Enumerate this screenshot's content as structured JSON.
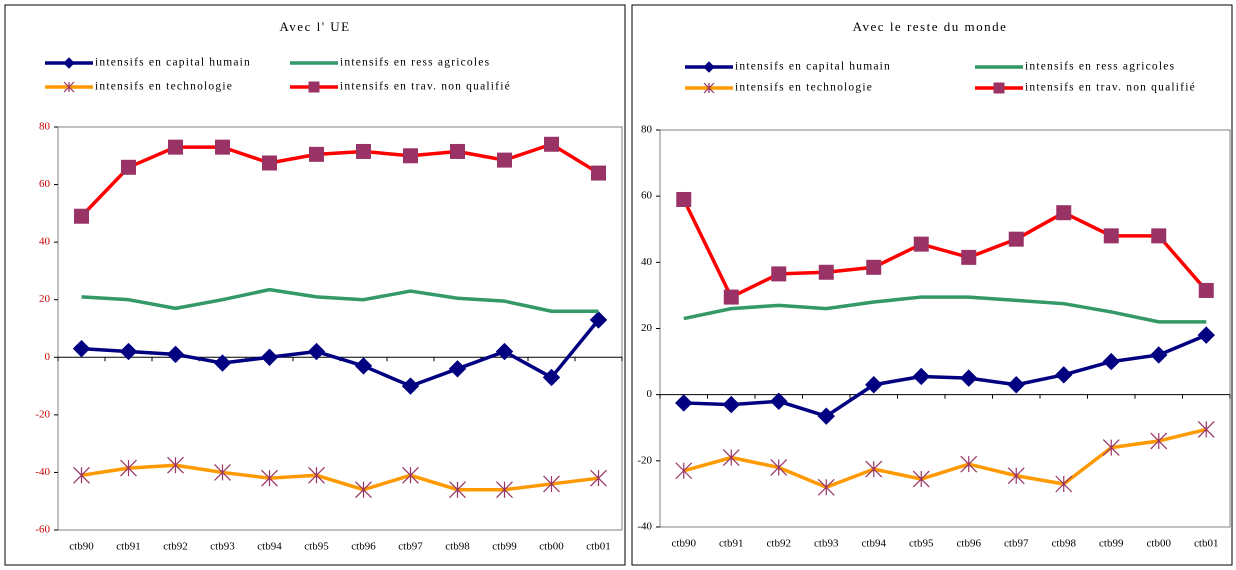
{
  "chart_data": [
    {
      "type": "line",
      "title": "Avec l' UE",
      "categories": [
        "ctb90",
        "ctb91",
        "ctb92",
        "ctb93",
        "ctb94",
        "ctb95",
        "ctb96",
        "ctb97",
        "ctb98",
        "ctb99",
        "ctb00",
        "ctb01"
      ],
      "ylim": [
        -60,
        80
      ],
      "yticks": [
        -60,
        -40,
        -20,
        0,
        20,
        40,
        60,
        80
      ],
      "series": [
        {
          "name": "intensifs en capital humain",
          "color": "#000080",
          "marker": "diamond",
          "values": [
            3,
            2,
            1,
            -2,
            0,
            2,
            -3,
            -10,
            -4,
            2,
            -7,
            13
          ]
        },
        {
          "name": "intensifs en ress agricoles",
          "color": "#339966",
          "marker": "none",
          "values": [
            21,
            20,
            17,
            20,
            23.5,
            21,
            20,
            23,
            20.5,
            19.5,
            16,
            16
          ]
        },
        {
          "name": "intensifs en technologie",
          "color": "#ff9900",
          "marker": "x",
          "values": [
            -41,
            -38.5,
            -37.5,
            -40,
            -42,
            -41,
            -46,
            -41,
            -46,
            -46,
            -44,
            -42
          ]
        },
        {
          "name": "intensifs en trav. non qualifié",
          "color": "#ff0000",
          "marker": "square",
          "values": [
            49,
            66,
            73,
            73,
            67.5,
            70.5,
            71.5,
            70,
            71.5,
            68.5,
            74,
            64
          ]
        }
      ]
    },
    {
      "type": "line",
      "title": "Avec le reste du monde",
      "categories": [
        "ctb90",
        "ctb91",
        "ctb92",
        "ctb93",
        "ctb94",
        "ctb95",
        "ctb96",
        "ctb97",
        "ctb98",
        "ctb99",
        "ctb00",
        "ctb01"
      ],
      "ylim": [
        -40,
        80
      ],
      "yticks": [
        -40,
        -20,
        0,
        20,
        40,
        60,
        80
      ],
      "series": [
        {
          "name": "intensifs en capital humain",
          "color": "#000080",
          "marker": "diamond",
          "values": [
            -2.5,
            -3,
            -2,
            -6.5,
            3,
            5.5,
            5,
            3,
            6,
            10,
            12,
            18
          ]
        },
        {
          "name": "intensifs en ress agricoles",
          "color": "#339966",
          "marker": "none",
          "values": [
            23,
            26,
            27,
            26,
            28,
            29.5,
            29.5,
            28.5,
            27.5,
            25,
            22,
            22
          ]
        },
        {
          "name": "intensifs en technologie",
          "color": "#ff9900",
          "marker": "x",
          "values": [
            -23,
            -19,
            -22,
            -28,
            -22.5,
            -25.5,
            -21,
            -24.5,
            -27,
            -16,
            -14,
            -10.5
          ]
        },
        {
          "name": "intensifs en trav. non qualifié",
          "color": "#ff0000",
          "marker": "square",
          "values": [
            59,
            29.5,
            36.5,
            37,
            38.5,
            45.5,
            41.5,
            47,
            55,
            48,
            48,
            31.5
          ]
        }
      ]
    }
  ]
}
